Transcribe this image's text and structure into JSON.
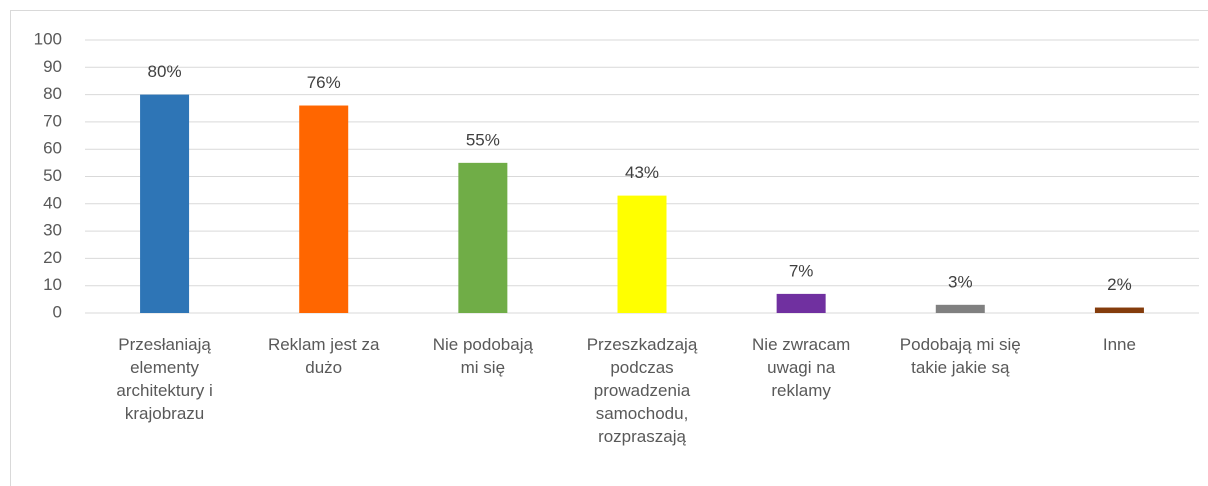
{
  "chart_data": {
    "type": "bar",
    "categories": [
      "Przesłaniają\nelementy\narchitektury i\nkrajobrazu",
      "Reklam jest za\ndużo",
      "Nie podobają\nmi się",
      "Przeszkadzają\npodczas\nprowadzenia\nsamochodu,\nrozpraszają",
      "Nie zwracam\nuwagi na\nreklamy",
      "Podobają mi się\ntakie jakie są",
      "Inne"
    ],
    "values": [
      80,
      76,
      55,
      43,
      7,
      3,
      2
    ],
    "value_labels": [
      "80%",
      "76%",
      "55%",
      "43%",
      "7%",
      "3%",
      "2%"
    ],
    "colors": [
      "#2e75b6",
      "#ff6600",
      "#70ad47",
      "#ffff00",
      "#7030a0",
      "#808080",
      "#843c0c"
    ],
    "ylim": [
      0,
      100
    ],
    "yticks": [
      0,
      10,
      20,
      30,
      40,
      50,
      60,
      70,
      80,
      90,
      100
    ],
    "grid": true
  }
}
